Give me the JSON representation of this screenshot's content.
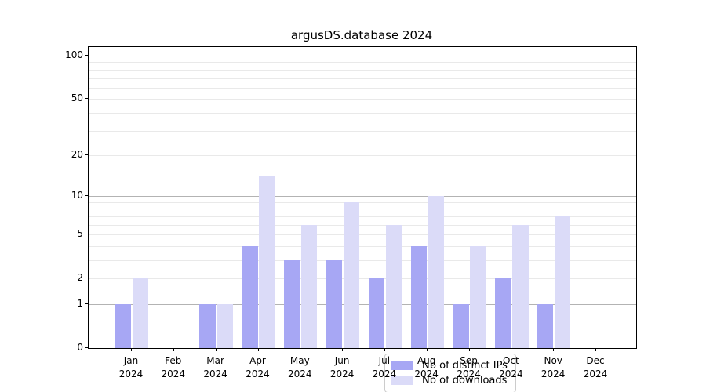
{
  "title": "argusDS.database 2024",
  "chart_data": {
    "type": "bar",
    "title": "argusDS.database 2024",
    "categories": [
      "Jan",
      "Feb",
      "Mar",
      "Apr",
      "May",
      "Jun",
      "Jul",
      "Aug",
      "Sep",
      "Oct",
      "Nov",
      "Dec"
    ],
    "category_year": "2024",
    "series": [
      {
        "name": "Nb of distinct IPs",
        "color": "#a7a7f4",
        "values": [
          1,
          0,
          1,
          4,
          3,
          3,
          2,
          4,
          1,
          2,
          1,
          0
        ]
      },
      {
        "name": "Nb of downloads",
        "color": "#dbdbf8",
        "values": [
          2,
          0,
          1,
          14,
          6,
          9,
          6,
          10,
          4,
          6,
          7,
          0
        ]
      }
    ],
    "xlabel": "",
    "ylabel": "",
    "yscale": "symlog-log10(1+v)",
    "ylim": [
      0,
      114
    ],
    "y_tick_labels": [
      100,
      50,
      20,
      10,
      5,
      2,
      1,
      0
    ],
    "y_major_gridlines": [
      1,
      10,
      100
    ],
    "y_minor_gridlines": [
      2,
      3,
      4,
      5,
      6,
      7,
      8,
      9,
      20,
      30,
      40,
      50,
      60,
      70,
      80,
      90
    ],
    "grid": true,
    "legend_position": "lower center"
  },
  "colors": {
    "background": "#ffffff",
    "axis": "#000000",
    "text": "#000000",
    "major_grid": "#b3b3b3",
    "minor_grid": "#e9e9e9",
    "legend_border": "#cccccc",
    "legend_background": "rgba(255,255,255,0.8)",
    "series_distinct_ips": "#a7a7f4",
    "series_downloads": "#dbdbf8"
  }
}
